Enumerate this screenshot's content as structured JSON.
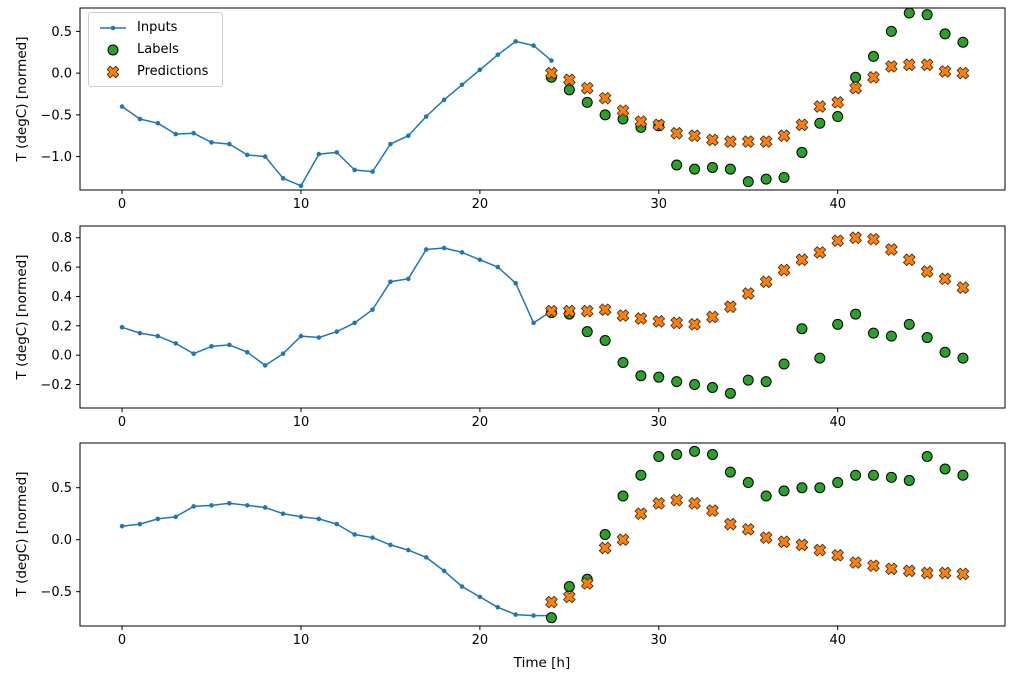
{
  "figure": {
    "xlabel": "Time [h]",
    "ylabel": "T (degC) [normed]",
    "background": "#ffffff",
    "colors": {
      "inputs": "#1f77b4",
      "labels": "#2ca02c",
      "predictions": "#ff7f0e",
      "marker_edge": "#000000",
      "spine": "#000000",
      "legend_border": "#cccccc"
    },
    "legend": [
      {
        "label": "Inputs",
        "marker": "dot-line"
      },
      {
        "label": "Labels",
        "marker": "circle"
      },
      {
        "label": "Predictions",
        "marker": "X"
      }
    ]
  },
  "chart_data": [
    {
      "type": "line",
      "title": "",
      "ylabel": "T (degC) [normed]",
      "xlim": [
        -2.35,
        49.35
      ],
      "ylim": [
        -1.4,
        0.78
      ],
      "xticks": [
        0,
        10,
        20,
        30,
        40
      ],
      "yticks": [
        -1.0,
        -0.5,
        0.0,
        0.5
      ],
      "grid": false,
      "legend_position": "upper-left",
      "series": [
        {
          "name": "Inputs",
          "marker": "dot-line",
          "x": [
            0,
            1,
            2,
            3,
            4,
            5,
            6,
            7,
            8,
            9,
            10,
            11,
            12,
            13,
            14,
            15,
            16,
            17,
            18,
            19,
            20,
            21,
            22,
            23,
            24
          ],
          "y": [
            -0.4,
            -0.55,
            -0.6,
            -0.73,
            -0.72,
            -0.83,
            -0.85,
            -0.98,
            -1.0,
            -1.26,
            -1.35,
            -0.97,
            -0.95,
            -1.16,
            -1.18,
            -0.85,
            -0.75,
            -0.52,
            -0.32,
            -0.14,
            0.04,
            0.22,
            0.38,
            0.33,
            0.15
          ]
        },
        {
          "name": "Labels",
          "marker": "circle",
          "x": [
            24,
            25,
            26,
            27,
            28,
            29,
            30,
            31,
            32,
            33,
            34,
            35,
            36,
            37,
            38,
            39,
            40,
            41,
            42,
            43,
            44,
            45,
            46,
            47
          ],
          "y": [
            -0.05,
            -0.2,
            -0.35,
            -0.5,
            -0.55,
            -0.65,
            -0.63,
            -1.1,
            -1.15,
            -1.13,
            -1.15,
            -1.3,
            -1.27,
            -1.25,
            -0.95,
            -0.6,
            -0.52,
            -0.05,
            0.2,
            0.5,
            0.72,
            0.7,
            0.47,
            0.37
          ]
        },
        {
          "name": "Predictions",
          "marker": "X",
          "x": [
            24,
            25,
            26,
            27,
            28,
            29,
            30,
            31,
            32,
            33,
            34,
            35,
            36,
            37,
            38,
            39,
            40,
            41,
            42,
            43,
            44,
            45,
            46,
            47
          ],
          "y": [
            0.0,
            -0.08,
            -0.18,
            -0.3,
            -0.45,
            -0.58,
            -0.62,
            -0.72,
            -0.75,
            -0.8,
            -0.82,
            -0.82,
            -0.82,
            -0.75,
            -0.62,
            -0.4,
            -0.35,
            -0.18,
            -0.05,
            0.08,
            0.1,
            0.1,
            0.02,
            0.0
          ]
        }
      ]
    },
    {
      "type": "line",
      "title": "",
      "ylabel": "T (degC) [normed]",
      "xlim": [
        -2.35,
        49.35
      ],
      "ylim": [
        -0.36,
        0.88
      ],
      "xticks": [
        0,
        10,
        20,
        30,
        40
      ],
      "yticks": [
        -0.2,
        0.0,
        0.2,
        0.4,
        0.6,
        0.8
      ],
      "grid": false,
      "series": [
        {
          "name": "Inputs",
          "marker": "dot-line",
          "x": [
            0,
            1,
            2,
            3,
            4,
            5,
            6,
            7,
            8,
            9,
            10,
            11,
            12,
            13,
            14,
            15,
            16,
            17,
            18,
            19,
            20,
            21,
            22,
            23,
            24
          ],
          "y": [
            0.19,
            0.15,
            0.13,
            0.08,
            0.01,
            0.06,
            0.07,
            0.02,
            -0.07,
            0.01,
            0.13,
            0.12,
            0.16,
            0.22,
            0.31,
            0.5,
            0.52,
            0.72,
            0.73,
            0.7,
            0.65,
            0.6,
            0.49,
            0.22,
            0.3
          ]
        },
        {
          "name": "Labels",
          "marker": "circle",
          "x": [
            24,
            25,
            26,
            27,
            28,
            29,
            30,
            31,
            32,
            33,
            34,
            35,
            36,
            37,
            38,
            39,
            40,
            41,
            42,
            43,
            44,
            45,
            46,
            47
          ],
          "y": [
            0.29,
            0.28,
            0.16,
            0.1,
            -0.05,
            -0.14,
            -0.15,
            -0.18,
            -0.2,
            -0.22,
            -0.26,
            -0.17,
            -0.18,
            -0.06,
            0.18,
            -0.02,
            0.21,
            0.28,
            0.15,
            0.13,
            0.21,
            0.12,
            0.02,
            -0.02
          ]
        },
        {
          "name": "Predictions",
          "marker": "X",
          "x": [
            24,
            25,
            26,
            27,
            28,
            29,
            30,
            31,
            32,
            33,
            34,
            35,
            36,
            37,
            38,
            39,
            40,
            41,
            42,
            43,
            44,
            45,
            46,
            47
          ],
          "y": [
            0.3,
            0.3,
            0.3,
            0.31,
            0.27,
            0.25,
            0.23,
            0.22,
            0.21,
            0.26,
            0.33,
            0.42,
            0.5,
            0.58,
            0.65,
            0.7,
            0.78,
            0.8,
            0.79,
            0.72,
            0.65,
            0.57,
            0.52,
            0.46
          ]
        }
      ]
    },
    {
      "type": "line",
      "title": "",
      "xlabel": "Time [h]",
      "ylabel": "T (degC) [normed]",
      "xlim": [
        -2.35,
        49.35
      ],
      "ylim": [
        -0.83,
        0.93
      ],
      "xticks": [
        0,
        10,
        20,
        30,
        40
      ],
      "yticks": [
        -0.5,
        0.0,
        0.5
      ],
      "grid": false,
      "series": [
        {
          "name": "Inputs",
          "marker": "dot-line",
          "x": [
            0,
            1,
            2,
            3,
            4,
            5,
            6,
            7,
            8,
            9,
            10,
            11,
            12,
            13,
            14,
            15,
            16,
            17,
            18,
            19,
            20,
            21,
            22,
            23,
            24
          ],
          "y": [
            0.13,
            0.15,
            0.2,
            0.22,
            0.32,
            0.33,
            0.35,
            0.33,
            0.31,
            0.25,
            0.22,
            0.2,
            0.15,
            0.05,
            0.02,
            -0.05,
            -0.1,
            -0.17,
            -0.3,
            -0.45,
            -0.55,
            -0.65,
            -0.72,
            -0.73,
            -0.73
          ]
        },
        {
          "name": "Labels",
          "marker": "circle",
          "x": [
            24,
            25,
            26,
            27,
            28,
            29,
            30,
            31,
            32,
            33,
            34,
            35,
            36,
            37,
            38,
            39,
            40,
            41,
            42,
            43,
            44,
            45,
            46,
            47
          ],
          "y": [
            -0.75,
            -0.45,
            -0.38,
            0.05,
            0.42,
            0.62,
            0.8,
            0.82,
            0.85,
            0.82,
            0.65,
            0.55,
            0.42,
            0.47,
            0.5,
            0.5,
            0.55,
            0.62,
            0.62,
            0.6,
            0.57,
            0.8,
            0.68,
            0.62
          ]
        },
        {
          "name": "Predictions",
          "marker": "X",
          "x": [
            24,
            25,
            26,
            27,
            28,
            29,
            30,
            31,
            32,
            33,
            34,
            35,
            36,
            37,
            38,
            39,
            40,
            41,
            42,
            43,
            44,
            45,
            46,
            47
          ],
          "y": [
            -0.6,
            -0.55,
            -0.42,
            -0.08,
            0.0,
            0.25,
            0.35,
            0.38,
            0.35,
            0.28,
            0.15,
            0.1,
            0.02,
            -0.02,
            -0.05,
            -0.1,
            -0.15,
            -0.22,
            -0.25,
            -0.28,
            -0.3,
            -0.32,
            -0.32,
            -0.33
          ]
        }
      ]
    }
  ]
}
